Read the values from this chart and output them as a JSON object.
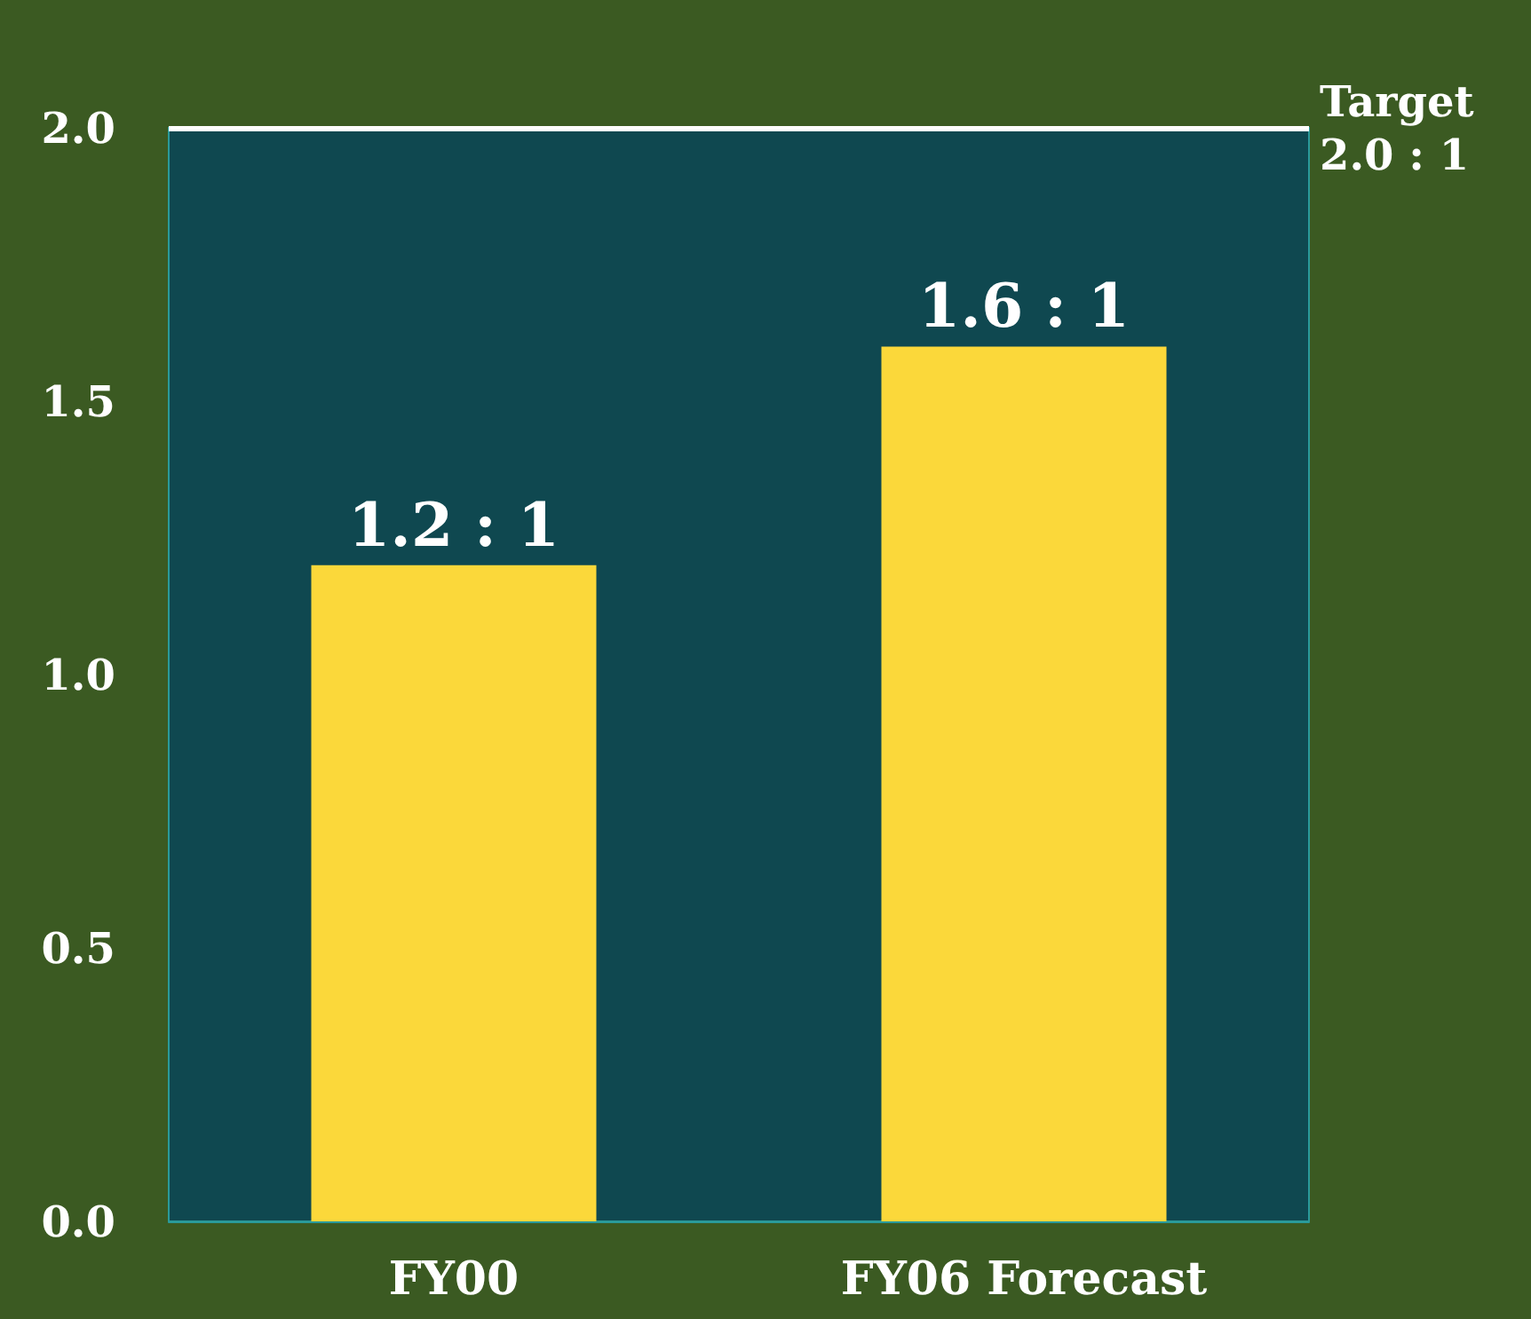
{
  "chart_data": {
    "type": "bar",
    "categories": [
      "FY00",
      "FY06 Forecast"
    ],
    "values": [
      1.2,
      1.6
    ],
    "value_labels": [
      "1.2 : 1",
      "1.6 : 1"
    ],
    "color": "#fbd83a",
    "ylim": [
      0,
      2.0
    ],
    "yticks": [
      {
        "value": 0,
        "label": "0.0"
      },
      {
        "value": 0.5,
        "label": "0.5"
      },
      {
        "value": 1,
        "label": "1.0"
      },
      {
        "value": 1.5,
        "label": "1.5"
      },
      {
        "value": 2,
        "label": "2.0"
      }
    ],
    "grid": false,
    "ref_lines": [
      {
        "axis": "y",
        "value": 2.0,
        "label": "Target\n2.0 : 1",
        "color": "#ffffff",
        "line_style": "solid"
      }
    ]
  }
}
